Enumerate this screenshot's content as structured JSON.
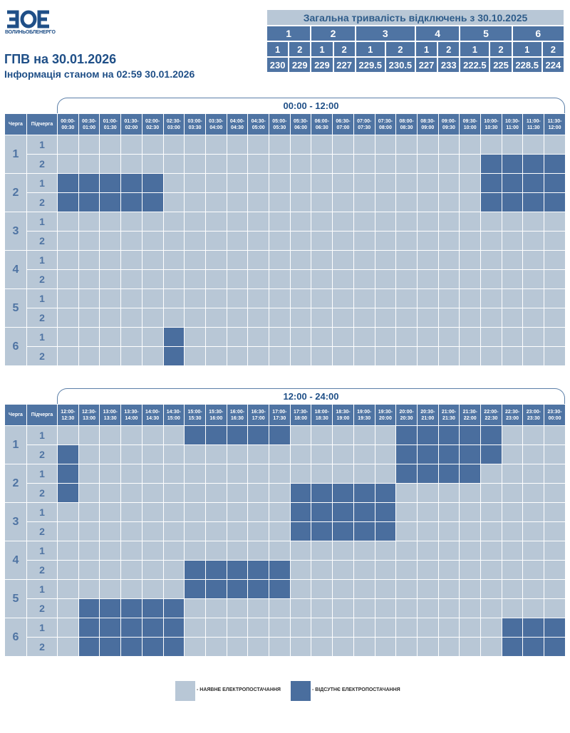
{
  "logo": {
    "text": "ВОЛИНЬОБЛЕНЕРГО",
    "mark": "ВОЕ"
  },
  "header": {
    "title": "ГПВ на 30.01.2026",
    "subtitle": "Інформація станом на 02:59 30.01.2026"
  },
  "summary": {
    "title": "Загальна тривалість відключень з 30.10.2025",
    "queues": [
      "1",
      "2",
      "3",
      "4",
      "5",
      "6"
    ],
    "subqueues": [
      "1",
      "2",
      "1",
      "2",
      "1",
      "2",
      "1",
      "2",
      "1",
      "2",
      "1",
      "2"
    ],
    "values": [
      "230",
      "229",
      "229",
      "227",
      "229.5",
      "230.5",
      "227",
      "233",
      "222.5",
      "225",
      "228.5",
      "224"
    ]
  },
  "grid_labels": {
    "queue": "Черга",
    "subqueue": "Підчерга"
  },
  "schedules": [
    {
      "period": "00:00 - 12:00",
      "times": [
        "00:00-00:30",
        "00:30-01:00",
        "01:00-01:30",
        "01:30-02:00",
        "02:00-02:30",
        "02:30-03:00",
        "03:00-03:30",
        "03:30-04:00",
        "04:00-04:30",
        "04:30-05:00",
        "05:00-05:30",
        "05:30-06:00",
        "06:00-06:30",
        "06:30-07:00",
        "07:00-07:30",
        "07:30-08:00",
        "08:00-08:30",
        "08:30-09:00",
        "09:00-09:30",
        "09:30-10:00",
        "10:00-10:30",
        "10:30-11:00",
        "11:00-11:30",
        "11:30-12:00"
      ],
      "rows": [
        {
          "queue": "1",
          "sub": "1",
          "off": []
        },
        {
          "queue": "1",
          "sub": "2",
          "off": [
            20,
            21,
            22,
            23
          ]
        },
        {
          "queue": "2",
          "sub": "1",
          "off": [
            0,
            1,
            2,
            3,
            4,
            20,
            21,
            22,
            23
          ]
        },
        {
          "queue": "2",
          "sub": "2",
          "off": [
            0,
            1,
            2,
            3,
            4,
            20,
            21,
            22,
            23
          ]
        },
        {
          "queue": "3",
          "sub": "1",
          "off": []
        },
        {
          "queue": "3",
          "sub": "2",
          "off": []
        },
        {
          "queue": "4",
          "sub": "1",
          "off": []
        },
        {
          "queue": "4",
          "sub": "2",
          "off": []
        },
        {
          "queue": "5",
          "sub": "1",
          "off": []
        },
        {
          "queue": "5",
          "sub": "2",
          "off": []
        },
        {
          "queue": "6",
          "sub": "1",
          "off": [
            5
          ]
        },
        {
          "queue": "6",
          "sub": "2",
          "off": [
            5
          ]
        }
      ]
    },
    {
      "period": "12:00 - 24:00",
      "times": [
        "12:00-12:30",
        "12:30-13:00",
        "13:00-13:30",
        "13:30-14:00",
        "14:00-14:30",
        "14:30-15:00",
        "15:00-15:30",
        "15:30-16:00",
        "16:00-16:30",
        "16:30-17:00",
        "17:00-17:30",
        "17:30-18:00",
        "18:00-18:30",
        "18:30-19:00",
        "19:00-19:30",
        "19:30-20:00",
        "20:00-20:30",
        "20:30-21:00",
        "21:00-21:30",
        "21:30-22:00",
        "22:00-22:30",
        "22:30-23:00",
        "23:00-23:30",
        "23:30-00:00"
      ],
      "rows": [
        {
          "queue": "1",
          "sub": "1",
          "off": [
            6,
            7,
            8,
            9,
            10,
            16,
            17,
            18,
            19,
            20
          ]
        },
        {
          "queue": "1",
          "sub": "2",
          "off": [
            0,
            16,
            17,
            18,
            19,
            20
          ]
        },
        {
          "queue": "2",
          "sub": "1",
          "off": [
            0,
            16,
            17,
            18,
            19
          ]
        },
        {
          "queue": "2",
          "sub": "2",
          "off": [
            0,
            11,
            12,
            13,
            14,
            15
          ]
        },
        {
          "queue": "3",
          "sub": "1",
          "off": [
            11,
            12,
            13,
            14,
            15
          ]
        },
        {
          "queue": "3",
          "sub": "2",
          "off": [
            11,
            12,
            13,
            14,
            15
          ]
        },
        {
          "queue": "4",
          "sub": "1",
          "off": []
        },
        {
          "queue": "4",
          "sub": "2",
          "off": [
            6,
            7,
            8,
            9,
            10
          ]
        },
        {
          "queue": "5",
          "sub": "1",
          "off": [
            6,
            7,
            8,
            9,
            10
          ]
        },
        {
          "queue": "5",
          "sub": "2",
          "off": [
            1,
            2,
            3,
            4,
            5
          ]
        },
        {
          "queue": "6",
          "sub": "1",
          "off": [
            1,
            2,
            3,
            4,
            5,
            21,
            22,
            23
          ]
        },
        {
          "queue": "6",
          "sub": "2",
          "off": [
            1,
            2,
            3,
            4,
            5,
            21,
            22,
            23
          ]
        }
      ]
    }
  ],
  "legend": {
    "on_label": "- НАЯВНЕ ЕЛЕКТРОПОСТАЧАННЯ",
    "off_label": "- ВІДСУТНЄ ЕЛЕКТРОПОСТАЧАННЯ"
  },
  "colors": {
    "on": "#b8c7d6",
    "off": "#4a6e9e",
    "header": "#4f74a3",
    "text": "#1f4f87"
  }
}
